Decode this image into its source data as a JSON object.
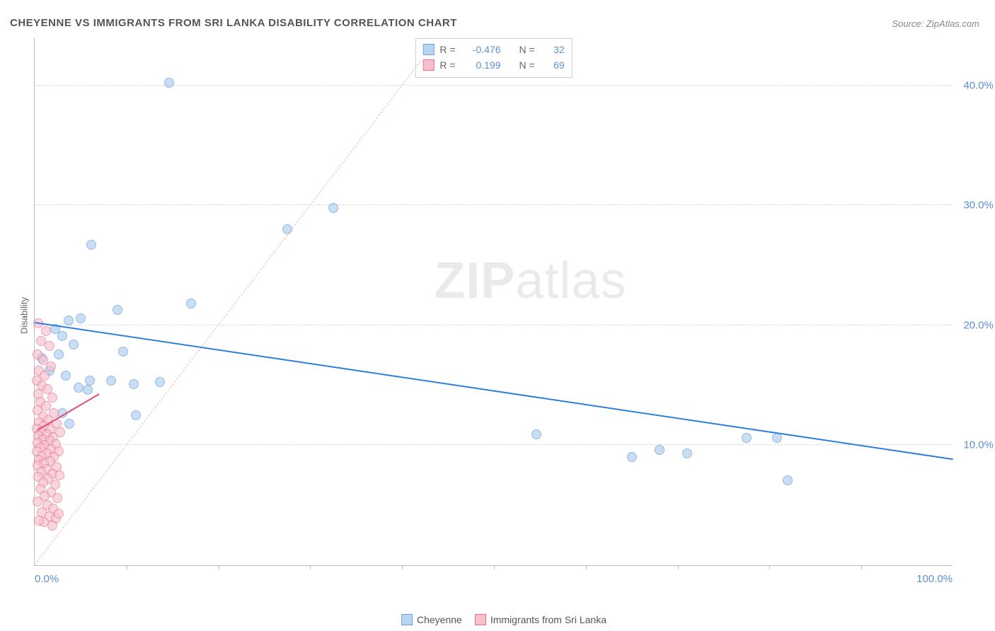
{
  "title": "CHEYENNE VS IMMIGRANTS FROM SRI LANKA DISABILITY CORRELATION CHART",
  "source_prefix": "Source: ",
  "source_name": "ZipAtlas.com",
  "ylabel": "Disability",
  "watermark_bold": "ZIP",
  "watermark_rest": "atlas",
  "watermark_left_pct": 54,
  "watermark_top_pct": 46,
  "chart": {
    "type": "scatter",
    "xlim": [
      0,
      100
    ],
    "ylim": [
      0,
      44
    ],
    "x_ticks_minor": [
      10,
      20,
      30,
      40,
      50,
      60,
      70,
      80,
      90
    ],
    "x_labels": [
      {
        "x": 0,
        "text": "0.0%",
        "align": "left"
      },
      {
        "x": 100,
        "text": "100.0%",
        "align": "right"
      }
    ],
    "y_gridlines": [
      10,
      20,
      30,
      40
    ],
    "y_tick_labels": [
      "10.0%",
      "20.0%",
      "30.0%",
      "40.0%"
    ],
    "grid_color": "#d8d8d8",
    "axis_color": "#bdbdbd",
    "ytick_label_color": "#5b8fd6",
    "xtick_label_color": "#5b8fd6",
    "background_color": "#ffffff"
  },
  "series": [
    {
      "name": "Cheyenne",
      "fill": "#b9d4f0",
      "stroke": "#6fa4db",
      "marker_radius": 7,
      "marker_opacity": 0.75,
      "trend": {
        "x1": 0,
        "y1": 20.2,
        "x2": 100,
        "y2": 8.8,
        "color": "#2f7ed8",
        "width": 2.5,
        "dash": "solid"
      },
      "diag": {
        "x1": 0,
        "y1": 0,
        "x2": 42,
        "y2": 42,
        "color": "#f3b6c3",
        "width": 1,
        "dash": "dashed"
      },
      "stats": {
        "R_label": "R =",
        "R": "-0.476",
        "N_label": "N =",
        "N": "32"
      },
      "points": [
        {
          "x": 14.6,
          "y": 40.2
        },
        {
          "x": 32.5,
          "y": 29.8
        },
        {
          "x": 27.5,
          "y": 28.0
        },
        {
          "x": 6.2,
          "y": 26.7
        },
        {
          "x": 17.0,
          "y": 21.8
        },
        {
          "x": 9.0,
          "y": 21.3
        },
        {
          "x": 5.0,
          "y": 20.6
        },
        {
          "x": 3.7,
          "y": 20.4
        },
        {
          "x": 2.2,
          "y": 19.7
        },
        {
          "x": 3.0,
          "y": 19.1
        },
        {
          "x": 4.2,
          "y": 18.4
        },
        {
          "x": 9.6,
          "y": 17.8
        },
        {
          "x": 2.6,
          "y": 17.6
        },
        {
          "x": 0.8,
          "y": 17.3
        },
        {
          "x": 1.6,
          "y": 16.2
        },
        {
          "x": 3.4,
          "y": 15.8
        },
        {
          "x": 13.6,
          "y": 15.3
        },
        {
          "x": 6.0,
          "y": 15.4
        },
        {
          "x": 8.3,
          "y": 15.4
        },
        {
          "x": 10.8,
          "y": 15.1
        },
        {
          "x": 4.8,
          "y": 14.8
        },
        {
          "x": 5.8,
          "y": 14.6
        },
        {
          "x": 3.0,
          "y": 12.7
        },
        {
          "x": 11.0,
          "y": 12.5
        },
        {
          "x": 3.8,
          "y": 11.8
        },
        {
          "x": 77.5,
          "y": 10.6
        },
        {
          "x": 80.8,
          "y": 10.6
        },
        {
          "x": 68.0,
          "y": 9.6
        },
        {
          "x": 71.0,
          "y": 9.3
        },
        {
          "x": 65.0,
          "y": 9.0
        },
        {
          "x": 54.6,
          "y": 10.9
        },
        {
          "x": 82.0,
          "y": 7.1
        }
      ]
    },
    {
      "name": "Immigrants from Sri Lanka",
      "fill": "#f6c1cd",
      "stroke": "#e8718f",
      "marker_radius": 7,
      "marker_opacity": 0.65,
      "trend": {
        "x1": 0.3,
        "y1": 11.2,
        "x2": 7.0,
        "y2": 14.2,
        "color": "#e04b71",
        "width": 2.5,
        "dash": "solid"
      },
      "stats": {
        "R_label": "R =",
        "R": "0.199",
        "N_label": "N =",
        "N": "69"
      },
      "points": [
        {
          "x": 0.4,
          "y": 20.2
        },
        {
          "x": 1.2,
          "y": 19.5
        },
        {
          "x": 0.7,
          "y": 18.7
        },
        {
          "x": 1.6,
          "y": 18.3
        },
        {
          "x": 0.3,
          "y": 17.6
        },
        {
          "x": 0.9,
          "y": 17.1
        },
        {
          "x": 1.8,
          "y": 16.6
        },
        {
          "x": 0.5,
          "y": 16.2
        },
        {
          "x": 1.1,
          "y": 15.8
        },
        {
          "x": 0.2,
          "y": 15.4
        },
        {
          "x": 0.8,
          "y": 15.0
        },
        {
          "x": 1.4,
          "y": 14.7
        },
        {
          "x": 0.4,
          "y": 14.3
        },
        {
          "x": 1.9,
          "y": 14.0
        },
        {
          "x": 0.6,
          "y": 13.6
        },
        {
          "x": 1.2,
          "y": 13.3
        },
        {
          "x": 0.3,
          "y": 12.9
        },
        {
          "x": 2.1,
          "y": 12.7
        },
        {
          "x": 0.9,
          "y": 12.4
        },
        {
          "x": 1.5,
          "y": 12.1
        },
        {
          "x": 0.5,
          "y": 11.9
        },
        {
          "x": 2.4,
          "y": 11.8
        },
        {
          "x": 1.0,
          "y": 11.6
        },
        {
          "x": 0.2,
          "y": 11.4
        },
        {
          "x": 1.7,
          "y": 11.3
        },
        {
          "x": 0.7,
          "y": 11.1
        },
        {
          "x": 2.8,
          "y": 11.1
        },
        {
          "x": 1.3,
          "y": 10.9
        },
        {
          "x": 0.4,
          "y": 10.8
        },
        {
          "x": 2.0,
          "y": 10.7
        },
        {
          "x": 0.9,
          "y": 10.5
        },
        {
          "x": 1.6,
          "y": 10.4
        },
        {
          "x": 0.3,
          "y": 10.2
        },
        {
          "x": 2.3,
          "y": 10.1
        },
        {
          "x": 1.1,
          "y": 10.0
        },
        {
          "x": 0.6,
          "y": 9.8
        },
        {
          "x": 1.8,
          "y": 9.7
        },
        {
          "x": 0.2,
          "y": 9.5
        },
        {
          "x": 2.6,
          "y": 9.5
        },
        {
          "x": 1.4,
          "y": 9.3
        },
        {
          "x": 0.8,
          "y": 9.1
        },
        {
          "x": 2.1,
          "y": 9.0
        },
        {
          "x": 0.5,
          "y": 8.8
        },
        {
          "x": 1.7,
          "y": 8.7
        },
        {
          "x": 1.0,
          "y": 8.5
        },
        {
          "x": 0.3,
          "y": 8.3
        },
        {
          "x": 2.4,
          "y": 8.2
        },
        {
          "x": 1.3,
          "y": 8.0
        },
        {
          "x": 0.7,
          "y": 7.8
        },
        {
          "x": 1.9,
          "y": 7.6
        },
        {
          "x": 0.4,
          "y": 7.4
        },
        {
          "x": 1.5,
          "y": 7.2
        },
        {
          "x": 2.7,
          "y": 7.5
        },
        {
          "x": 0.9,
          "y": 6.9
        },
        {
          "x": 2.2,
          "y": 6.7
        },
        {
          "x": 0.6,
          "y": 6.4
        },
        {
          "x": 1.8,
          "y": 6.1
        },
        {
          "x": 1.1,
          "y": 5.8
        },
        {
          "x": 2.5,
          "y": 5.6
        },
        {
          "x": 0.3,
          "y": 5.3
        },
        {
          "x": 1.4,
          "y": 5.0
        },
        {
          "x": 2.0,
          "y": 4.7
        },
        {
          "x": 0.8,
          "y": 4.4
        },
        {
          "x": 1.6,
          "y": 4.1
        },
        {
          "x": 2.3,
          "y": 3.9
        },
        {
          "x": 1.0,
          "y": 3.6
        },
        {
          "x": 1.9,
          "y": 3.3
        },
        {
          "x": 0.5,
          "y": 3.7
        },
        {
          "x": 2.6,
          "y": 4.3
        }
      ]
    }
  ],
  "legend_bottom": [
    {
      "swatch_fill": "#b9d4f0",
      "swatch_stroke": "#6fa4db",
      "label": "Cheyenne"
    },
    {
      "swatch_fill": "#f6c1cd",
      "swatch_stroke": "#e8718f",
      "label": "Immigrants from Sri Lanka"
    }
  ]
}
